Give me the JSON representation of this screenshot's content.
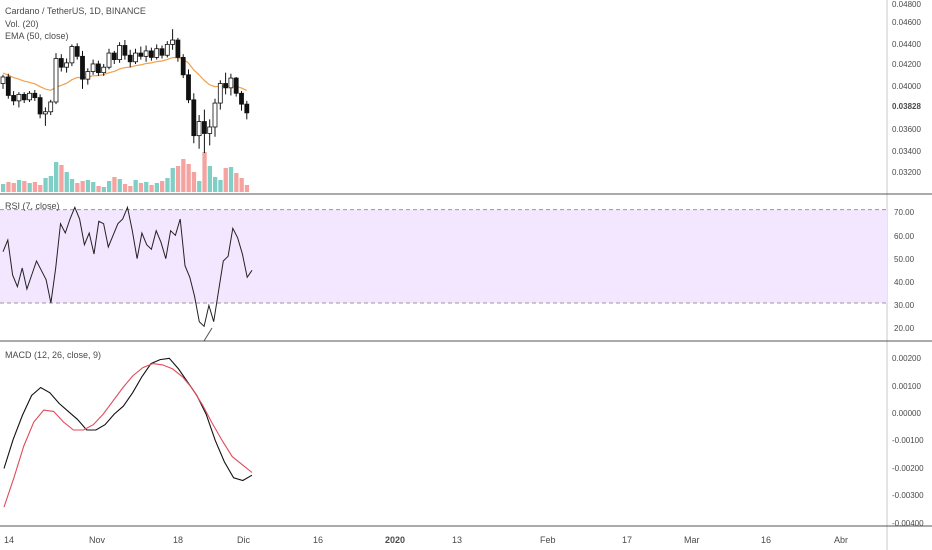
{
  "header": {
    "symbol": "Cardano / TetherUS, 1D, BINANCE",
    "volume_label": "Vol. (20)",
    "ema_label": "EMA (50, close)",
    "rsi_label": "RSI (7, close)",
    "macd_label": "MACD (12, 26, close, 9)"
  },
  "colors": {
    "up": "#26a69a",
    "down": "#ef5350",
    "vol_up": "#7fcfc6",
    "vol_down": "#f4a3a0",
    "candle": "#111111",
    "ema": "#f2a04a",
    "rsi_line": "#222222",
    "rsi_band": "#f3e6ff",
    "macd_line": "#111111",
    "signal_line": "#e04b5a",
    "grid": "#e0e0e0"
  },
  "price_axis": [
    "0.04800",
    "0.04600",
    "0.04400",
    "0.04200",
    "0.04000",
    "0.03600",
    "0.03400",
    "0.03200"
  ],
  "last_price": "0.03828",
  "rsi_axis": [
    "70.00",
    "60.00",
    "50.00",
    "40.00",
    "30.00",
    "20.00"
  ],
  "macd_axis": [
    "0.00200",
    "0.00100",
    "0.00000",
    "-0.00100",
    "-0.00200",
    "-0.00300",
    "-0.00400"
  ],
  "x_axis": [
    "14",
    "Nov",
    "18",
    "Dic",
    "16",
    "2020",
    "13",
    "Feb",
    "17",
    "Mar",
    "16",
    "Abr"
  ],
  "chart_data": {
    "type": "candlestick",
    "price": {
      "ylim": [
        0.0312,
        0.0485
      ],
      "candles": [
        [
          0.041,
          0.0418,
          0.0405,
          0.0416
        ],
        [
          0.0416,
          0.0419,
          0.0396,
          0.0399
        ],
        [
          0.0399,
          0.0403,
          0.039,
          0.0394
        ],
        [
          0.0394,
          0.0402,
          0.0388,
          0.04
        ],
        [
          0.04,
          0.0402,
          0.0392,
          0.0395
        ],
        [
          0.0395,
          0.0403,
          0.0393,
          0.0401
        ],
        [
          0.0401,
          0.0404,
          0.0394,
          0.0397
        ],
        [
          0.0397,
          0.04,
          0.0378,
          0.0382
        ],
        [
          0.0382,
          0.0388,
          0.0371,
          0.0384
        ],
        [
          0.0384,
          0.0395,
          0.0381,
          0.0393
        ],
        [
          0.0393,
          0.0438,
          0.0391,
          0.0433
        ],
        [
          0.0433,
          0.0437,
          0.0421,
          0.0425
        ],
        [
          0.0425,
          0.0433,
          0.042,
          0.0429
        ],
        [
          0.0429,
          0.0446,
          0.0426,
          0.0444
        ],
        [
          0.0444,
          0.0447,
          0.0432,
          0.0435
        ],
        [
          0.0435,
          0.044,
          0.0405,
          0.0414
        ],
        [
          0.0414,
          0.0424,
          0.0409,
          0.0421
        ],
        [
          0.0421,
          0.0432,
          0.0418,
          0.0428
        ],
        [
          0.0428,
          0.0431,
          0.0417,
          0.042
        ],
        [
          0.042,
          0.0428,
          0.0417,
          0.0425
        ],
        [
          0.0425,
          0.0442,
          0.0423,
          0.0438
        ],
        [
          0.0438,
          0.044,
          0.0428,
          0.0432
        ],
        [
          0.0432,
          0.0448,
          0.0429,
          0.0445
        ],
        [
          0.0445,
          0.045,
          0.0432,
          0.0436
        ],
        [
          0.0436,
          0.0441,
          0.0425,
          0.043
        ],
        [
          0.043,
          0.0442,
          0.0428,
          0.0438
        ],
        [
          0.0438,
          0.0444,
          0.0432,
          0.0435
        ],
        [
          0.0435,
          0.0445,
          0.043,
          0.044
        ],
        [
          0.044,
          0.0443,
          0.0431,
          0.0434
        ],
        [
          0.0434,
          0.0446,
          0.0432,
          0.0442
        ],
        [
          0.0442,
          0.0445,
          0.0433,
          0.0436
        ],
        [
          0.0436,
          0.0449,
          0.0434,
          0.0446
        ],
        [
          0.0446,
          0.046,
          0.0441,
          0.045
        ],
        [
          0.045,
          0.0452,
          0.043,
          0.0434
        ],
        [
          0.0434,
          0.0437,
          0.0415,
          0.0418
        ],
        [
          0.0418,
          0.0423,
          0.0392,
          0.0395
        ],
        [
          0.0395,
          0.0401,
          0.0355,
          0.0362
        ],
        [
          0.0362,
          0.0381,
          0.035,
          0.0375
        ],
        [
          0.0375,
          0.0386,
          0.0346,
          0.0364
        ],
        [
          0.0364,
          0.0377,
          0.0353,
          0.037
        ],
        [
          0.037,
          0.0396,
          0.0361,
          0.0392
        ],
        [
          0.0392,
          0.0413,
          0.0386,
          0.041
        ],
        [
          0.041,
          0.042,
          0.04,
          0.0406
        ],
        [
          0.0406,
          0.0419,
          0.0399,
          0.0415
        ],
        [
          0.0415,
          0.0416,
          0.0398,
          0.0401
        ],
        [
          0.0401,
          0.0403,
          0.0385,
          0.0391
        ],
        [
          0.0391,
          0.0394,
          0.0377,
          0.0383
        ]
      ],
      "volume": [
        8,
        10,
        9,
        12,
        11,
        9,
        10,
        7,
        14,
        16,
        30,
        27,
        20,
        13,
        9,
        11,
        12,
        10,
        6,
        5,
        11,
        15,
        13,
        8,
        6,
        12,
        9,
        10,
        7,
        9,
        11,
        14,
        24,
        26,
        33,
        28,
        20,
        11,
        40,
        26,
        15,
        12,
        24,
        25,
        19,
        14,
        7
      ]
    },
    "rsi": {
      "ylim": [
        15,
        75
      ],
      "bands": [
        30,
        70
      ],
      "values": [
        52,
        57,
        42,
        37,
        45,
        36,
        42,
        48,
        44,
        40,
        30,
        45,
        64,
        60,
        66,
        71,
        66,
        55,
        60,
        51,
        65,
        64,
        54,
        59,
        64,
        66,
        71,
        61,
        49,
        60,
        55,
        53,
        61,
        56,
        49,
        61,
        59,
        66,
        46,
        41,
        33,
        22,
        20,
        29,
        22,
        35,
        48,
        50,
        62,
        58,
        51,
        41,
        44
      ]
    },
    "macd": {
      "ylim": [
        -0.0043,
        0.0024
      ],
      "macd": [
        -0.00225,
        -0.00115,
        -0.00025,
        0.0005,
        0.0008,
        0.0006,
        0.0002,
        -0.0001,
        -0.0004,
        -0.0008,
        -0.0008,
        -0.0006,
        -0.0002,
        0.0001,
        0.0006,
        0.0012,
        0.0017,
        0.00185,
        0.0019,
        0.0015,
        0.001,
        0.0005,
        -0.0002,
        -0.0012,
        -0.002,
        -0.0026,
        -0.0027,
        -0.0025
      ],
      "signal": [
        -0.0037,
        -0.0026,
        -0.0014,
        -0.0005,
        -5e-05,
        -0.0001,
        -0.0005,
        -0.0008,
        -0.0008,
        -0.0006,
        -0.0002,
        0.0003,
        0.0008,
        0.00125,
        0.00155,
        0.0017,
        0.00165,
        0.0015,
        0.0012,
        0.00075,
        0.00015,
        -0.00055,
        -0.0012,
        -0.0018,
        -0.0021,
        -0.0024
      ]
    }
  }
}
